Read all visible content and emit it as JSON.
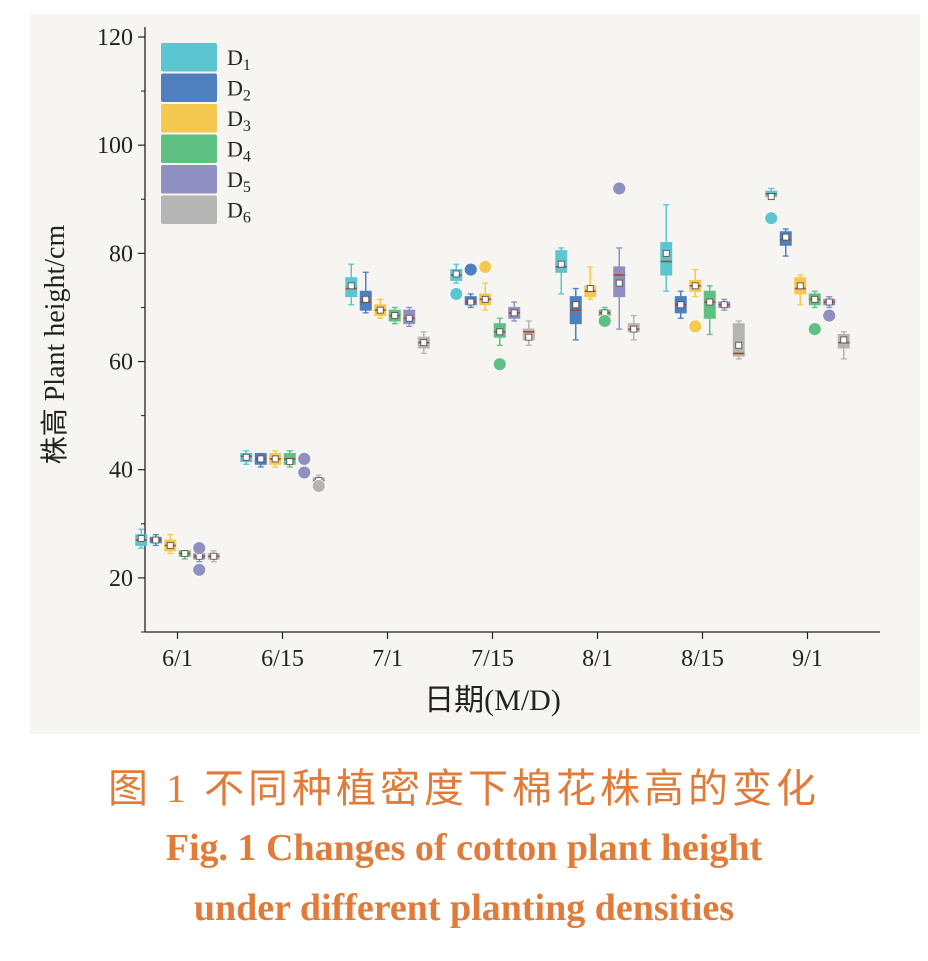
{
  "caption": {
    "cn": "图 1   不同种植密度下棉花株高的变化",
    "en_line1": "Fig. 1   Changes of cotton plant height",
    "en_line2": "under different planting densities"
  },
  "chart_data": {
    "type": "box",
    "ylabel": "株高 Plant height/cm",
    "xlabel": "日期(M/D)",
    "ylim": [
      10,
      120
    ],
    "yticks": [
      20,
      40,
      60,
      80,
      100,
      120
    ],
    "categories": [
      "6/1",
      "6/15",
      "7/1",
      "7/15",
      "8/1",
      "8/15",
      "9/1"
    ],
    "legend_placement": "top-left",
    "grid": false,
    "series": [
      {
        "name": "D1",
        "color": "#5cc6d0",
        "median": [
          27,
          42.5,
          73.5,
          76,
          77.5,
          78.5,
          91
        ],
        "mean": [
          27.3,
          42.3,
          74,
          76.2,
          78,
          80,
          90.5
        ],
        "q1": [
          26,
          41.5,
          72,
          75,
          76.5,
          76,
          90.5
        ],
        "q3": [
          28,
          43,
          75.5,
          77,
          80.5,
          82,
          91.5
        ],
        "min": [
          25.5,
          41,
          70.5,
          74.5,
          72.5,
          73,
          90
        ],
        "max": [
          29,
          43.5,
          78,
          78,
          81,
          89,
          92
        ],
        "outliers": [
          [],
          [],
          [],
          [
            72.5
          ],
          [],
          [],
          [
            86.5
          ]
        ]
      },
      {
        "name": "D2",
        "color": "#4f7fbd",
        "median": [
          27,
          42,
          71,
          71,
          69.5,
          70.5,
          82.5
        ],
        "mean": [
          27,
          42,
          71.5,
          71,
          70.5,
          70.5,
          83
        ],
        "q1": [
          26.5,
          41,
          69.5,
          70.5,
          67,
          69,
          81.5
        ],
        "q3": [
          27.5,
          43,
          73,
          72,
          72,
          72,
          84
        ],
        "min": [
          26,
          40.5,
          69,
          70,
          64,
          68,
          79.5
        ],
        "max": [
          28,
          43,
          76.5,
          72.5,
          73.5,
          73,
          84.5
        ],
        "outliers": [
          [],
          [],
          [],
          [
            77
          ],
          [],
          [],
          []
        ]
      },
      {
        "name": "D3",
        "color": "#f5c94f",
        "median": [
          26,
          42,
          69.5,
          71.5,
          73,
          74,
          73.5
        ],
        "mean": [
          26,
          42,
          69.5,
          71.5,
          73.5,
          74,
          74
        ],
        "q1": [
          25,
          41,
          68.5,
          70.5,
          72,
          73,
          72.5
        ],
        "q3": [
          27,
          43,
          70.5,
          72.5,
          74,
          75,
          75.5
        ],
        "min": [
          24.5,
          40.5,
          68,
          69.5,
          71.5,
          72,
          70.5
        ],
        "max": [
          28,
          43.5,
          71.5,
          74.5,
          77.5,
          77,
          76
        ],
        "outliers": [
          [],
          [],
          [],
          [
            77.5
          ],
          [],
          [
            66.5
          ],
          []
        ]
      },
      {
        "name": "D4",
        "color": "#5ec083",
        "median": [
          24.5,
          42,
          68.5,
          65.5,
          69,
          71,
          71.5
        ],
        "mean": [
          24.5,
          41.5,
          68.5,
          65.5,
          69,
          71,
          71.5
        ],
        "q1": [
          24,
          41,
          67.5,
          64.5,
          68.5,
          68,
          70.5
        ],
        "q3": [
          25,
          43,
          69.5,
          67,
          69.5,
          73,
          72.5
        ],
        "min": [
          23.5,
          40.5,
          67,
          63,
          68,
          65,
          70
        ],
        "max": [
          25,
          43.5,
          70,
          68,
          70,
          74,
          73
        ],
        "outliers": [
          [],
          [],
          [],
          [
            59.5
          ],
          [
            67.5
          ],
          [],
          [
            66
          ]
        ]
      },
      {
        "name": "D5",
        "color": "#8f8fc2",
        "median": [
          24,
          42,
          68,
          69,
          76,
          70.5,
          71
        ],
        "mean": [
          24,
          41.5,
          68,
          69,
          74.5,
          70.5,
          71
        ],
        "q1": [
          23.5,
          41.5,
          67,
          68,
          72,
          70,
          70.5
        ],
        "q3": [
          24.5,
          42.5,
          69.5,
          70,
          77.5,
          71,
          71.5
        ],
        "min": [
          23,
          41,
          66.5,
          67.5,
          66,
          69.5,
          70
        ],
        "max": [
          25,
          43,
          70,
          71,
          81,
          71.5,
          72
        ],
        "outliers": [
          [
            25.5,
            21.5
          ],
          [
            42,
            39.5
          ],
          [],
          [],
          [
            92
          ],
          [],
          [
            68.5
          ]
        ]
      },
      {
        "name": "D6",
        "color": "#b5b5b5",
        "median": [
          24,
          38,
          63.5,
          65.5,
          66,
          61.5,
          63.5
        ],
        "mean": [
          24,
          38,
          63.5,
          64.5,
          66,
          63,
          64
        ],
        "q1": [
          23.5,
          37.5,
          62.5,
          64,
          65.5,
          61,
          62.5
        ],
        "q3": [
          24.5,
          38.5,
          64.5,
          66,
          67,
          67,
          65
        ],
        "min": [
          23,
          37,
          61.5,
          63,
          64,
          60.5,
          60.5
        ],
        "max": [
          25,
          39,
          65.5,
          67.5,
          68.5,
          67.5,
          65.5
        ],
        "outliers": [
          [],
          [
            37
          ],
          [],
          [],
          [],
          [],
          []
        ]
      }
    ]
  },
  "colors": {
    "median_line": "#c0392b",
    "axis": "#222222",
    "caption": "#e07b39"
  }
}
